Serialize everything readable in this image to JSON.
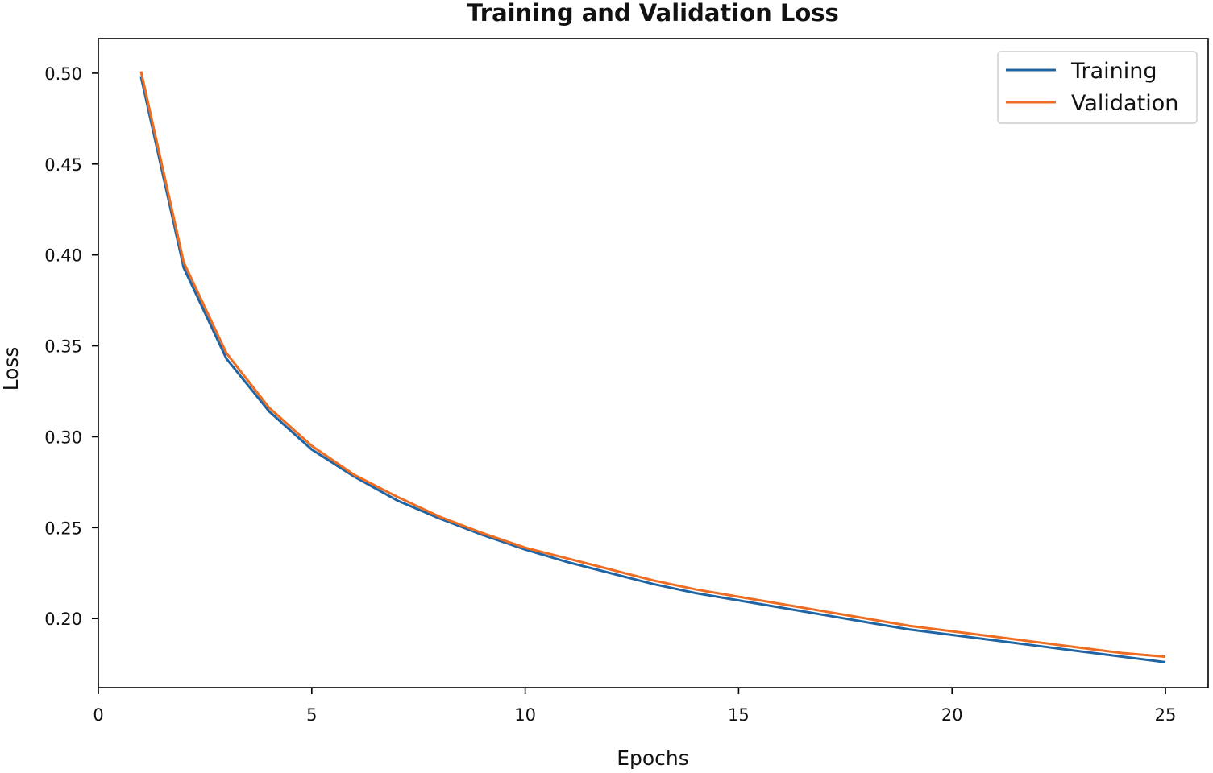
{
  "chart_data": {
    "type": "line",
    "title": "Training and Validation Loss",
    "xlabel": "Epochs",
    "ylabel": "Loss",
    "xlim": [
      0,
      26
    ],
    "ylim": [
      0.162,
      0.519
    ],
    "xticks": [
      0,
      5,
      10,
      15,
      20,
      25
    ],
    "xtick_labels": [
      "0",
      "5",
      "10",
      "15",
      "20",
      "25"
    ],
    "yticks": [
      0.2,
      0.25,
      0.3,
      0.35,
      0.4,
      0.45,
      0.5
    ],
    "ytick_labels": [
      "0.20",
      "0.25",
      "0.30",
      "0.35",
      "0.40",
      "0.45",
      "0.50"
    ],
    "grid": false,
    "legend_position": "top-right",
    "x": [
      1,
      2,
      3,
      4,
      5,
      6,
      7,
      8,
      9,
      10,
      11,
      12,
      13,
      14,
      15,
      16,
      17,
      18,
      19,
      20,
      21,
      22,
      23,
      24,
      25
    ],
    "series": [
      {
        "name": "Training",
        "color": "#1f65a3",
        "values": [
          0.498,
          0.393,
          0.343,
          0.314,
          0.293,
          0.278,
          0.265,
          0.255,
          0.246,
          0.238,
          0.231,
          0.225,
          0.219,
          0.214,
          0.21,
          0.206,
          0.202,
          0.198,
          0.194,
          0.191,
          0.188,
          0.185,
          0.182,
          0.179,
          0.176
        ]
      },
      {
        "name": "Validation",
        "color": "#ee6d22",
        "values": [
          0.501,
          0.396,
          0.346,
          0.316,
          0.295,
          0.279,
          0.267,
          0.256,
          0.247,
          0.239,
          0.233,
          0.227,
          0.221,
          0.216,
          0.212,
          0.208,
          0.204,
          0.2,
          0.196,
          0.193,
          0.19,
          0.187,
          0.184,
          0.181,
          0.179
        ]
      }
    ]
  }
}
